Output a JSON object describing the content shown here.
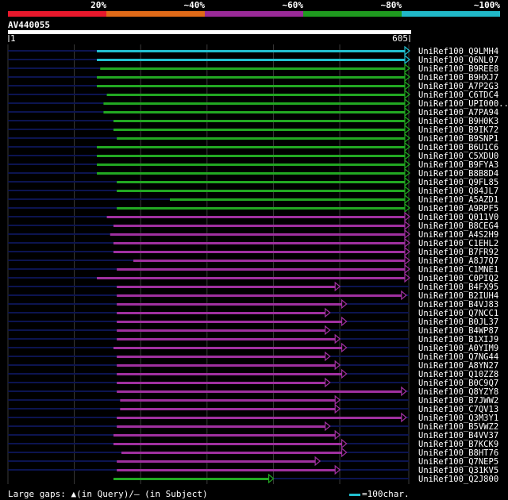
{
  "query": {
    "name": "AV440055",
    "length": 605,
    "start_label": "1",
    "end_label": "605"
  },
  "legend": [
    {
      "label": "20%",
      "color": "#e8182c"
    },
    {
      "label": "~40%",
      "color": "#e06a18"
    },
    {
      "label": "~60%",
      "color": "#9a2a98"
    },
    {
      "label": "~80%",
      "color": "#1f9a1f"
    },
    {
      "label": "~100%",
      "color": "#20b8c8"
    }
  ],
  "colors": {
    "cyan": "#22c0d0",
    "green": "#22a822",
    "purple": "#a030a0",
    "navy": "#0c1450",
    "grid": "#3a3a3a"
  },
  "footer": {
    "gaps_text": "Large gaps: ▲(in Query)/– (in Subject)",
    "scale_text": "=100char."
  },
  "chart_data": {
    "type": "alignment",
    "x_range": [
      1,
      605
    ],
    "hits": [
      {
        "name": "UniRef100_Q9LMH4",
        "start": 135,
        "end": 605,
        "color": "cyan",
        "ntail": 135
      },
      {
        "name": "UniRef100_Q6NL07",
        "start": 135,
        "end": 605,
        "color": "cyan",
        "ntail": 135
      },
      {
        "name": "UniRef100_B9REE8",
        "start": 140,
        "end": 605,
        "color": "green",
        "ntail": 135
      },
      {
        "name": "UniRef100_B9HXJ7",
        "start": 135,
        "end": 605,
        "color": "green",
        "ntail": 135
      },
      {
        "name": "UniRef100_A7P2G3",
        "start": 135,
        "end": 605,
        "color": "green",
        "ntail": 135
      },
      {
        "name": "UniRef100_C6TDC4",
        "start": 150,
        "end": 605,
        "color": "green",
        "ntail": 135
      },
      {
        "name": "UniRef100_UPI000..",
        "start": 145,
        "end": 605,
        "color": "green",
        "ntail": 135
      },
      {
        "name": "UniRef100_A7PA94",
        "start": 145,
        "end": 605,
        "color": "green",
        "ntail": 135
      },
      {
        "name": "UniRef100_B9H0K3",
        "start": 160,
        "end": 605,
        "color": "green",
        "ntail": 155
      },
      {
        "name": "UniRef100_B9IK72",
        "start": 160,
        "end": 605,
        "color": "green",
        "ntail": 155
      },
      {
        "name": "UniRef100_B9SNP1",
        "start": 165,
        "end": 605,
        "color": "green",
        "ntail": 160
      },
      {
        "name": "UniRef100_B6U1C6",
        "start": 135,
        "end": 605,
        "color": "green",
        "ntail": 135
      },
      {
        "name": "UniRef100_C5XDU0",
        "start": 135,
        "end": 605,
        "color": "green",
        "ntail": 135
      },
      {
        "name": "UniRef100_B9FYA3",
        "start": 135,
        "end": 605,
        "color": "green",
        "ntail": 135
      },
      {
        "name": "UniRef100_B8B8D4",
        "start": 135,
        "end": 605,
        "color": "green",
        "ntail": 135
      },
      {
        "name": "UniRef100_Q9FL85",
        "start": 165,
        "end": 605,
        "color": "green",
        "ntail": 160
      },
      {
        "name": "UniRef100_Q84JL7",
        "start": 165,
        "end": 605,
        "color": "green",
        "ntail": 160
      },
      {
        "name": "UniRef100_A5AZD1",
        "start": 245,
        "end": 605,
        "color": "green",
        "ntail": 240
      },
      {
        "name": "UniRef100_A9RPF5",
        "start": 165,
        "end": 605,
        "color": "green",
        "ntail": 160
      },
      {
        "name": "UniRef100_Q011V0",
        "start": 150,
        "end": 605,
        "color": "purple",
        "ntail": 145
      },
      {
        "name": "UniRef100_B8CEG4",
        "start": 160,
        "end": 605,
        "color": "purple",
        "ntail": 155
      },
      {
        "name": "UniRef100_A4S2H9",
        "start": 155,
        "end": 605,
        "color": "purple",
        "ntail": 150
      },
      {
        "name": "UniRef100_C1EHL2",
        "start": 160,
        "end": 605,
        "color": "purple",
        "ntail": 155
      },
      {
        "name": "UniRef100_B7FR92",
        "start": 160,
        "end": 605,
        "color": "purple",
        "ntail": 155
      },
      {
        "name": "UniRef100_A8J7Q7",
        "start": 190,
        "end": 605,
        "color": "purple",
        "ntail": 185
      },
      {
        "name": "UniRef100_C1MNE1",
        "start": 165,
        "end": 605,
        "color": "purple",
        "ntail": 160
      },
      {
        "name": "UniRef100_C0PIQ2",
        "start": 135,
        "end": 605,
        "color": "purple",
        "ntail": 135
      },
      {
        "name": "UniRef100_B4FX95",
        "start": 165,
        "end": 500,
        "color": "purple",
        "ntail": 160
      },
      {
        "name": "UniRef100_B2IUH4",
        "start": 165,
        "end": 600,
        "color": "purple",
        "ntail": 160
      },
      {
        "name": "UniRef100_B4VJ83",
        "start": 165,
        "end": 510,
        "color": "purple",
        "ntail": 160
      },
      {
        "name": "UniRef100_Q7NCC1",
        "start": 165,
        "end": 485,
        "color": "purple",
        "ntail": 160
      },
      {
        "name": "UniRef100_B0JL37",
        "start": 165,
        "end": 510,
        "color": "purple",
        "ntail": 160
      },
      {
        "name": "UniRef100_B4WP87",
        "start": 165,
        "end": 485,
        "color": "purple",
        "ntail": 160
      },
      {
        "name": "UniRef100_B1XIJ9",
        "start": 165,
        "end": 500,
        "color": "purple",
        "ntail": 160
      },
      {
        "name": "UniRef100_A0YIM9",
        "start": 160,
        "end": 510,
        "color": "purple",
        "ntail": 155
      },
      {
        "name": "UniRef100_Q7NG44",
        "start": 165,
        "end": 485,
        "color": "purple",
        "ntail": 160
      },
      {
        "name": "UniRef100_A8YN27",
        "start": 165,
        "end": 500,
        "color": "purple",
        "ntail": 160
      },
      {
        "name": "UniRef100_Q10ZZ8",
        "start": 165,
        "end": 510,
        "color": "purple",
        "ntail": 160
      },
      {
        "name": "UniRef100_B0C9Q7",
        "start": 165,
        "end": 485,
        "color": "purple",
        "ntail": 160
      },
      {
        "name": "UniRef100_Q8YZY8",
        "start": 165,
        "end": 600,
        "color": "purple",
        "ntail": 160
      },
      {
        "name": "UniRef100_B7JWW2",
        "start": 170,
        "end": 500,
        "color": "purple",
        "ntail": 165
      },
      {
        "name": "UniRef100_C7QV13",
        "start": 170,
        "end": 500,
        "color": "purple",
        "ntail": 165
      },
      {
        "name": "UniRef100_Q3M3Y1",
        "start": 165,
        "end": 600,
        "color": "purple",
        "ntail": 160
      },
      {
        "name": "UniRef100_B5VWZ2",
        "start": 165,
        "end": 485,
        "color": "purple",
        "ntail": 160
      },
      {
        "name": "UniRef100_B4VV37",
        "start": 160,
        "end": 500,
        "color": "purple",
        "ntail": 155
      },
      {
        "name": "UniRef100_B7KCK9",
        "start": 160,
        "end": 510,
        "color": "purple",
        "ntail": 155
      },
      {
        "name": "UniRef100_B8HT76",
        "start": 172,
        "end": 510,
        "color": "purple",
        "ntail": 170
      },
      {
        "name": "UniRef100_Q7NEP5",
        "start": 165,
        "end": 470,
        "color": "purple",
        "ntail": 160
      },
      {
        "name": "UniRef100_Q31KV5",
        "start": 165,
        "end": 500,
        "color": "purple",
        "ntail": 160
      },
      {
        "name": "UniRef100_Q2J800",
        "start": 160,
        "end": 400,
        "color": "green",
        "ntail": 0
      }
    ]
  }
}
